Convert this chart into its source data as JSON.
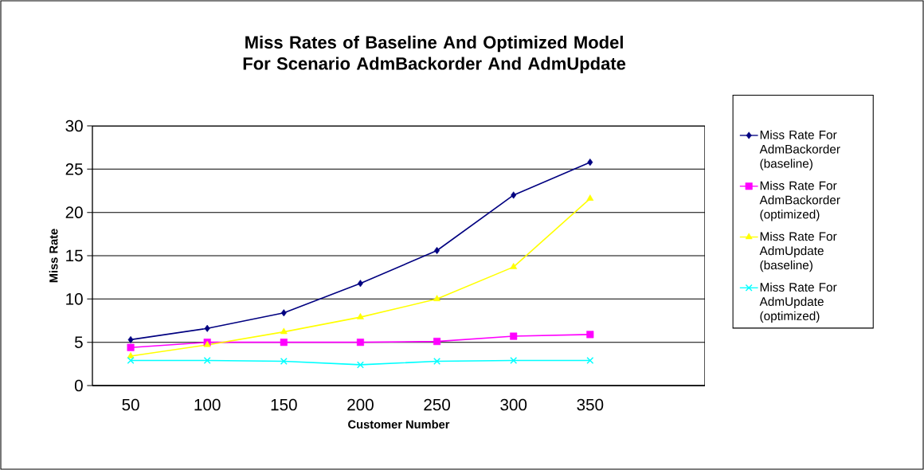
{
  "chart_data": {
    "type": "line",
    "title": "Miss Rates of Baseline And Optimized Model For Scenario AdmBackorder And AdmUpdate",
    "xlabel": "Customer Number",
    "ylabel": "Miss Rate",
    "categories": [
      "50",
      "100",
      "150",
      "200",
      "250",
      "300",
      "350",
      null
    ],
    "series": [
      {
        "name": "Miss Rate For AdmBackorder (baseline)",
        "color": "#000080",
        "marker": "diamond",
        "values": [
          5.3,
          6.6,
          8.4,
          11.8,
          15.6,
          22.0,
          25.8,
          null
        ]
      },
      {
        "name": "Miss Rate For AdmBackorder (optimized)",
        "color": "#ff00ff",
        "marker": "square",
        "values": [
          4.4,
          5.0,
          5.0,
          5.0,
          5.1,
          5.7,
          5.9,
          null
        ]
      },
      {
        "name": "Miss Rate For AdmUpdate (baseline)",
        "color": "#ffff00",
        "marker": "triangle",
        "values": [
          3.4,
          4.7,
          6.2,
          7.9,
          10.0,
          13.7,
          21.6,
          null
        ]
      },
      {
        "name": "Miss Rate For AdmUpdate (optimized)",
        "color": "#00ffff",
        "marker": "cross",
        "values": [
          2.9,
          2.9,
          2.8,
          2.4,
          2.8,
          2.9,
          2.9,
          null
        ]
      }
    ],
    "ylim": [
      0,
      30
    ],
    "yticks": [
      0,
      5,
      10,
      15,
      20,
      25,
      30
    ],
    "grid": "y",
    "legend": "right"
  }
}
